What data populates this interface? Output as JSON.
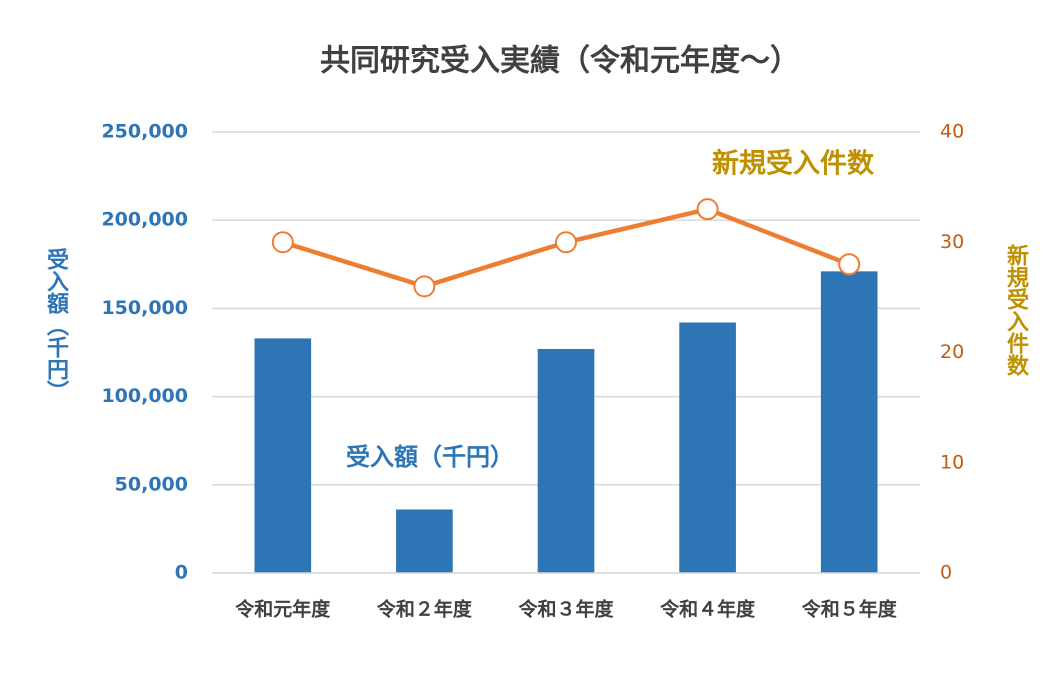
{
  "chart_data": {
    "type": "bar_line",
    "title": "共同研究受入実績（令和元年度～）",
    "y_label": "受入額（千円）",
    "y2_label": "新規受入件数",
    "categories": [
      "令和元年度",
      "令和２年度",
      "令和３年度",
      "令和４年度",
      "令和５年度"
    ],
    "series": [
      {
        "name": "受入額（千円）",
        "type": "bar",
        "axis": "y",
        "color": "#2e75b6",
        "values": [
          133000,
          36000,
          127000,
          142000,
          171000
        ]
      },
      {
        "name": "新規受入件数",
        "type": "line",
        "axis": "y2",
        "color": "#ed7d31",
        "values": [
          30,
          26,
          30,
          33,
          28
        ]
      }
    ],
    "ylim": [
      0,
      250000
    ],
    "yticks": [
      0,
      {
        "value": 50000,
        "label": "50,000"
      },
      {
        "value": 100000,
        "label": "100,000"
      },
      {
        "value": 150000,
        "label": "150,000"
      },
      {
        "value": 200000,
        "label": "200,000"
      },
      {
        "value": 250000,
        "label": "250,000"
      }
    ],
    "y2lim": [
      0,
      40
    ],
    "y2ticks": [
      0,
      10,
      20,
      30,
      40
    ],
    "grid": true
  }
}
